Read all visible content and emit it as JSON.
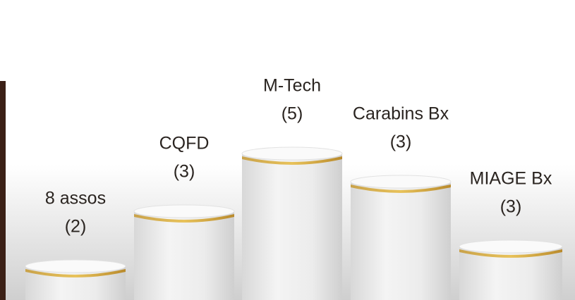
{
  "podiums": [
    {
      "name": "8 assos",
      "count": "(2)"
    },
    {
      "name": "CQFD",
      "count": "(3)"
    },
    {
      "name": "M-Tech",
      "count": "(5)"
    },
    {
      "name": "Carabins Bx",
      "count": "(3)"
    },
    {
      "name": "MIAGE Bx",
      "count": "(3)"
    }
  ]
}
